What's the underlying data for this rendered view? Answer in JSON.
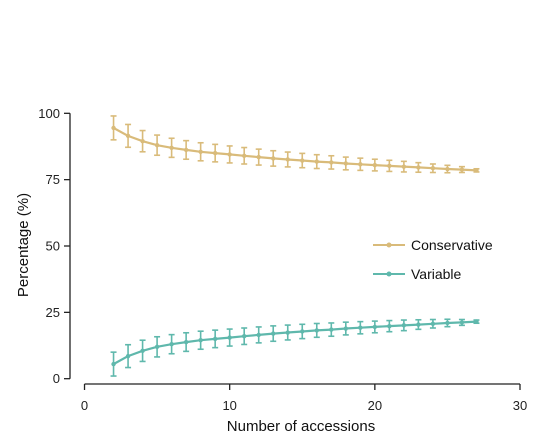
{
  "chart_data": {
    "type": "line",
    "xlabel": "Number of accessions",
    "ylabel": "Percentage (%)",
    "xlim": [
      -1,
      30
    ],
    "ylim": [
      -2,
      102
    ],
    "xticks": [
      0,
      10,
      20,
      30
    ],
    "yticks": [
      0,
      25,
      50,
      75,
      100
    ],
    "legend_position": "center-right",
    "x": [
      2,
      3,
      4,
      5,
      6,
      7,
      8,
      9,
      10,
      11,
      12,
      13,
      14,
      15,
      16,
      17,
      18,
      19,
      20,
      21,
      22,
      23,
      24,
      25,
      26,
      27
    ],
    "series": [
      {
        "name": "Conservative",
        "color": "#d9bb7a",
        "values": [
          94.5,
          91.5,
          89.5,
          88.0,
          87.0,
          86.2,
          85.5,
          85.0,
          84.5,
          84.0,
          83.5,
          83.0,
          82.6,
          82.2,
          81.8,
          81.5,
          81.1,
          80.8,
          80.5,
          80.2,
          79.9,
          79.6,
          79.3,
          79.0,
          78.8,
          78.5
        ],
        "errors": [
          4.5,
          4.3,
          4.0,
          3.8,
          3.6,
          3.5,
          3.4,
          3.3,
          3.2,
          3.1,
          3.0,
          2.9,
          2.8,
          2.7,
          2.6,
          2.5,
          2.4,
          2.3,
          2.2,
          2.1,
          2.0,
          1.8,
          1.6,
          1.4,
          1.1,
          0.6
        ]
      },
      {
        "name": "Variable",
        "color": "#5fb8ac",
        "values": [
          5.5,
          8.5,
          10.5,
          12.0,
          13.0,
          13.8,
          14.5,
          15.0,
          15.5,
          16.0,
          16.5,
          17.0,
          17.4,
          17.8,
          18.2,
          18.5,
          18.9,
          19.2,
          19.5,
          19.8,
          20.1,
          20.4,
          20.7,
          21.0,
          21.2,
          21.5
        ],
        "errors": [
          4.5,
          4.3,
          4.0,
          3.8,
          3.6,
          3.5,
          3.4,
          3.3,
          3.2,
          3.1,
          3.0,
          2.9,
          2.8,
          2.7,
          2.6,
          2.5,
          2.4,
          2.3,
          2.2,
          2.1,
          2.0,
          1.8,
          1.6,
          1.4,
          1.1,
          0.6
        ]
      }
    ]
  }
}
